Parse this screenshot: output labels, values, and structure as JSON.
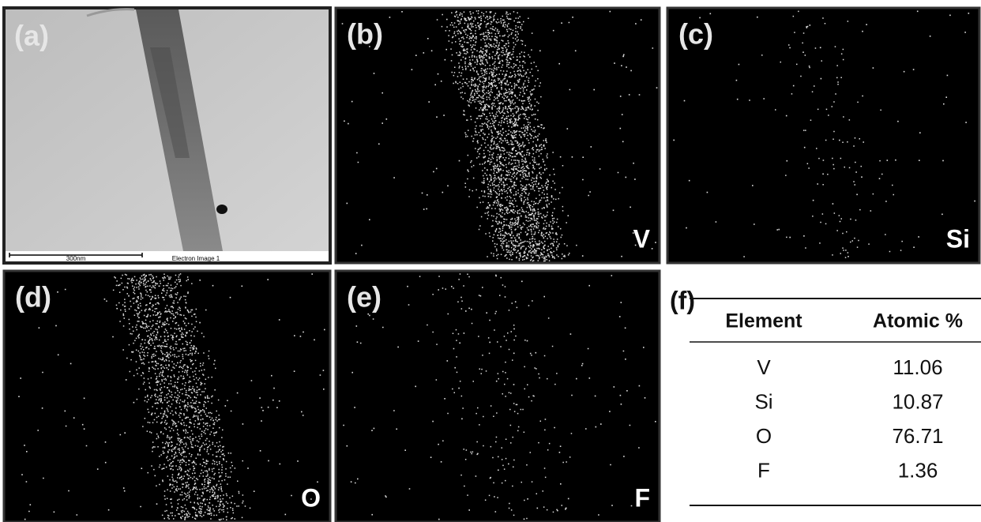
{
  "panels": [
    {
      "label": "(a)",
      "scale_bar": "300nm",
      "caption": "Electron Image 1"
    },
    {
      "label": "(b)",
      "element": "V"
    },
    {
      "label": "(c)",
      "element": "Si"
    },
    {
      "label": "(d)",
      "element": "O"
    },
    {
      "label": "(e)",
      "element": "F"
    }
  ],
  "table": {
    "label": "(f)",
    "header": [
      "Element",
      "Atomic %"
    ],
    "rows": [
      [
        "V",
        11.06
      ],
      [
        "Si",
        10.87
      ],
      [
        "O",
        76.71
      ],
      [
        "F",
        1.36
      ]
    ]
  }
}
